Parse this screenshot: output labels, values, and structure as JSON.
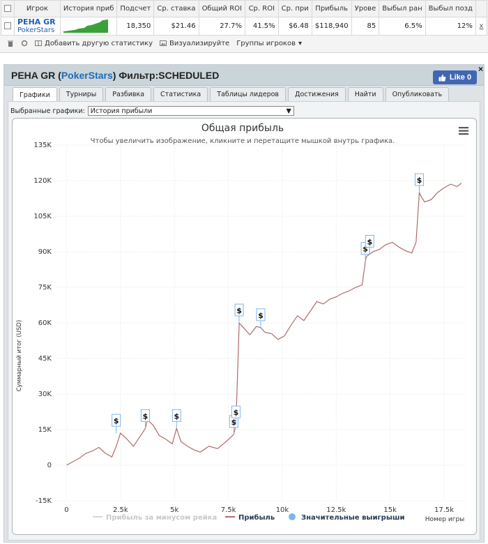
{
  "stats_table": {
    "headers": [
      "Игрок",
      "История приб",
      "Подсчет",
      "Ср. ставка",
      "Общий ROI",
      "Ср. ROI",
      "Ср. при",
      "Прибыль",
      "Урове",
      "Выбыл ран",
      "Выбыл позд"
    ],
    "row": {
      "player_name": "PEHA GR",
      "player_site": "PokerStars",
      "count": "18,350",
      "avg_stake": "$21.46",
      "total_roi": "27.7%",
      "avg_roi": "41.5%",
      "avg_profit": "$6.48",
      "profit": "$118,940",
      "level": "85",
      "early_out": "6.5%",
      "late_out": "12%",
      "remove": "x"
    }
  },
  "toolbar": {
    "add_stat": "Добавить другую статистику",
    "visualize": "Визуализируйте",
    "groups": "Группы игроков"
  },
  "panel": {
    "title_name": "PEHA GR",
    "title_open": "(",
    "title_site": "PokerStars",
    "title_close": ")",
    "title_filter": "Фильтр:SCHEDULED",
    "like_label": "Like 0",
    "close": "×",
    "tabs": [
      "Графики",
      "Турниры",
      "Разбивка",
      "Статистика",
      "Таблицы лидеров",
      "Достижения",
      "Найти",
      "Опубликовать"
    ],
    "selected_label": "Выбранные графики:",
    "selected_value": "История прибыли"
  },
  "chart_data": {
    "type": "line",
    "title": "Общая прибыль",
    "subtitle": "Чтобы увеличить изображение, кликните и перетащите мышкой внутрь графика.",
    "xlabel": "Номер игры",
    "ylabel": "Суммарный итог (USD)",
    "xlim": [
      -500,
      18500
    ],
    "ylim": [
      -15000,
      135000
    ],
    "x_ticks": [
      "0",
      "2.5k",
      "5k",
      "7.5k",
      "10k",
      "12.5k",
      "15k",
      "17.5k"
    ],
    "x_tick_values": [
      0,
      2500,
      5000,
      7500,
      10000,
      12500,
      15000,
      17500
    ],
    "y_ticks": [
      "-15K",
      "0",
      "15K",
      "30K",
      "45K",
      "60K",
      "75K",
      "90K",
      "105K",
      "120K",
      "135K"
    ],
    "y_tick_values": [
      -15000,
      0,
      15000,
      30000,
      45000,
      60000,
      75000,
      90000,
      105000,
      120000,
      135000
    ],
    "grid": true,
    "legend_position": "bottom",
    "series": [
      {
        "name": "Прибыль",
        "color": "#b06a6a",
        "x": [
          0,
          300,
          600,
          900,
          1200,
          1500,
          1800,
          2100,
          2300,
          2500,
          2800,
          3100,
          3400,
          3650,
          3750,
          4000,
          4300,
          4600,
          4900,
          5100,
          5300,
          5600,
          5900,
          6200,
          6600,
          7000,
          7400,
          7750,
          7850,
          8000,
          8200,
          8500,
          8800,
          9000,
          9200,
          9500,
          9800,
          10100,
          10400,
          10700,
          11000,
          11300,
          11600,
          11900,
          12200,
          12500,
          12800,
          13100,
          13400,
          13700,
          13850,
          13900,
          14050,
          14200,
          14500,
          14800,
          15100,
          15400,
          15700,
          16000,
          16200,
          16350,
          16450,
          16600,
          16900,
          17200,
          17500,
          17800,
          18100,
          18300
        ],
        "values": [
          0,
          1500,
          3000,
          5000,
          6000,
          7500,
          5000,
          3500,
          8000,
          13500,
          11000,
          8000,
          12000,
          15500,
          19000,
          17000,
          12500,
          11000,
          9000,
          15500,
          10000,
          8000,
          6500,
          5500,
          8000,
          7000,
          10000,
          13000,
          17000,
          60000,
          58000,
          55000,
          58500,
          58000,
          56000,
          55500,
          53000,
          54500,
          59000,
          63000,
          61000,
          65000,
          69000,
          68000,
          70000,
          71000,
          72500,
          73500,
          75000,
          76000,
          86000,
          88000,
          89000,
          90000,
          91000,
          93000,
          94000,
          92000,
          90500,
          89500,
          94000,
          115000,
          113000,
          111000,
          112000,
          115000,
          117000,
          118500,
          117500,
          118940
        ]
      }
    ],
    "legend": [
      {
        "label": "Прибыль за минусом рейка",
        "color": "#d6d6d6",
        "marker": "line"
      },
      {
        "label": "Прибыль",
        "color": "#b06a6a",
        "marker": "line"
      },
      {
        "label": "Значительные выигрыши",
        "color": "#7cb5ec",
        "marker": "circle"
      }
    ],
    "flags": [
      {
        "x": 2300,
        "y": 13500,
        "text": "$"
      },
      {
        "x": 3650,
        "y": 15500,
        "text": "$"
      },
      {
        "x": 5100,
        "y": 15500,
        "text": "$"
      },
      {
        "x": 7750,
        "y": 13000,
        "text": "$"
      },
      {
        "x": 7850,
        "y": 17000,
        "text": "$"
      },
      {
        "x": 8000,
        "y": 60000,
        "text": "$"
      },
      {
        "x": 9000,
        "y": 58000,
        "text": "$"
      },
      {
        "x": 13850,
        "y": 86000,
        "text": "$"
      },
      {
        "x": 14050,
        "y": 89000,
        "text": "$"
      },
      {
        "x": 16350,
        "y": 115000,
        "text": "$"
      }
    ]
  }
}
